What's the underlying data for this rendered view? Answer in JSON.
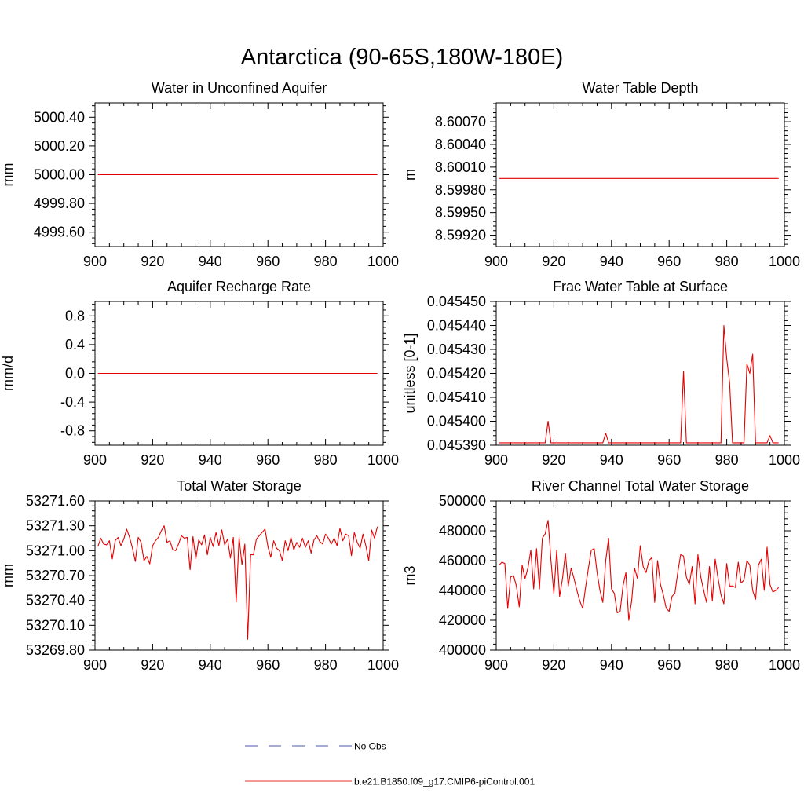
{
  "figure_title": "Antarctica (90-65S,180W-180E)",
  "legend": {
    "entries": [
      {
        "label": "No Obs",
        "color": "#4a5aa8",
        "dash": true
      },
      {
        "label": "b.e21.B1850.f09_g17.CMIP6-piControl.001",
        "color": "#e8302a",
        "dash": false
      }
    ]
  },
  "colors": {
    "series": "#e60000",
    "axis": "#000000"
  },
  "chart_data": [
    {
      "type": "line",
      "title": "Water in Unconfined Aquifer",
      "ylabel": "mm",
      "xlabel": "",
      "xlim": [
        900,
        1000
      ],
      "ylim": [
        4999.5,
        5000.5
      ],
      "xticks": [
        900,
        920,
        940,
        960,
        980,
        1000
      ],
      "yticks": [
        4999.6,
        4999.8,
        5000.0,
        5000.2,
        5000.4
      ],
      "ydec": 2,
      "x": [
        901,
        998
      ],
      "y": [
        5000.0,
        5000.0
      ]
    },
    {
      "type": "line",
      "title": "Water Table Depth",
      "ylabel": "m",
      "xlabel": "",
      "xlim": [
        900,
        1000
      ],
      "ylim": [
        8.59905,
        8.60095
      ],
      "xticks": [
        900,
        920,
        940,
        960,
        980,
        1000
      ],
      "yticks": [
        8.5992,
        8.5995,
        8.5998,
        8.6001,
        8.6004,
        8.6007
      ],
      "ydec": 5,
      "x": [
        901,
        998
      ],
      "y": [
        8.59995,
        8.59995
      ]
    },
    {
      "type": "line",
      "title": "Aquifer Recharge Rate",
      "ylabel": "mm/d",
      "xlabel": "",
      "xlim": [
        900,
        1000
      ],
      "ylim": [
        -1.0,
        1.0
      ],
      "xticks": [
        900,
        920,
        940,
        960,
        980,
        1000
      ],
      "yticks": [
        -0.8,
        -0.4,
        0.0,
        0.4,
        0.8
      ],
      "ydec": 1,
      "x": [
        901,
        998
      ],
      "y": [
        0.0,
        0.0
      ]
    },
    {
      "type": "line",
      "title": "Frac Water Table at Surface",
      "ylabel": "unitless [0-1]",
      "xlabel": "",
      "xlim": [
        900,
        1000
      ],
      "ylim": [
        0.04539,
        0.04545
      ],
      "xticks": [
        900,
        920,
        940,
        960,
        980,
        1000
      ],
      "yticks": [
        0.04539,
        0.0454,
        0.04541,
        0.04542,
        0.04543,
        0.04544,
        0.04545
      ],
      "ydec": 6,
      "x": [
        901,
        917,
        918,
        919,
        937,
        938,
        939,
        964,
        965,
        966,
        978,
        979,
        980,
        981,
        982,
        986,
        987,
        988,
        989,
        990,
        994,
        995,
        996,
        998
      ],
      "y": [
        0.045391,
        0.045391,
        0.0454,
        0.045391,
        0.045391,
        0.045395,
        0.045391,
        0.045391,
        0.045421,
        0.045391,
        0.045391,
        0.04544,
        0.045426,
        0.045416,
        0.045391,
        0.045391,
        0.045424,
        0.04542,
        0.045428,
        0.045391,
        0.045391,
        0.045394,
        0.045391,
        0.045391
      ]
    },
    {
      "type": "line",
      "title": "Total Water Storage",
      "ylabel": "mm",
      "xlabel": "",
      "xlim": [
        900,
        1000
      ],
      "ylim": [
        53269.8,
        53271.6
      ],
      "xticks": [
        900,
        920,
        940,
        960,
        980,
        1000
      ],
      "yticks": [
        53269.8,
        53270.1,
        53270.4,
        53270.7,
        53271.0,
        53271.3,
        53271.6
      ],
      "ydec": 2,
      "x": [
        901,
        902,
        903,
        904,
        905,
        906,
        907,
        908,
        909,
        910,
        911,
        912,
        913,
        914,
        915,
        916,
        917,
        918,
        919,
        920,
        921,
        922,
        923,
        924,
        925,
        926,
        927,
        928,
        929,
        930,
        931,
        932,
        933,
        934,
        935,
        936,
        937,
        938,
        939,
        940,
        941,
        942,
        943,
        944,
        945,
        946,
        947,
        948,
        949,
        950,
        951,
        952,
        953,
        954,
        955,
        956,
        957,
        958,
        959,
        960,
        961,
        962,
        963,
        964,
        965,
        966,
        967,
        968,
        969,
        970,
        971,
        972,
        973,
        974,
        975,
        976,
        977,
        978,
        979,
        980,
        981,
        982,
        983,
        984,
        985,
        986,
        987,
        988,
        989,
        990,
        991,
        992,
        993,
        994,
        995,
        996,
        997,
        998
      ],
      "y": [
        53271.05,
        53271.15,
        53271.08,
        53271.07,
        53271.12,
        53270.9,
        53271.12,
        53271.16,
        53271.06,
        53271.14,
        53271.26,
        53271.16,
        53271.03,
        53270.87,
        53271.16,
        53271.1,
        53270.88,
        53270.93,
        53270.84,
        53271.06,
        53271.12,
        53271.16,
        53271.24,
        53271.3,
        53271.1,
        53271.12,
        53271.01,
        53271.0,
        53271.08,
        53271.18,
        53271.15,
        53271.16,
        53270.77,
        53271.17,
        53270.9,
        53271.13,
        53271.07,
        53271.19,
        53270.95,
        53271.16,
        53271.05,
        53271.22,
        53271.06,
        53271.25,
        53271.07,
        53271.14,
        53270.91,
        53271.16,
        53270.38,
        53271.16,
        53270.83,
        53271.08,
        53269.93,
        53270.95,
        53270.95,
        53271.14,
        53271.18,
        53271.22,
        53271.26,
        53271.05,
        53270.92,
        53271.12,
        53271.03,
        53271.0,
        53270.88,
        53271.12,
        53271.0,
        53271.16,
        53271.01,
        53271.1,
        53271.04,
        53271.15,
        53271.04,
        53271.12,
        53270.97,
        53271.13,
        53271.18,
        53271.11,
        53271.08,
        53271.2,
        53271.15,
        53271.08,
        53271.15,
        53271.06,
        53271.27,
        53271.12,
        53271.2,
        53271.18,
        53270.94,
        53271.22,
        53271.1,
        53271.03,
        53271.2,
        53271.06,
        53270.88,
        53271.25,
        53271.15,
        53271.29
      ]
    },
    {
      "type": "line",
      "title": "River Channel Total Water Storage",
      "ylabel": "m3",
      "xlabel": "",
      "xlim": [
        900,
        1000
      ],
      "ylim": [
        400000,
        500000
      ],
      "xticks": [
        900,
        920,
        940,
        960,
        980,
        1000
      ],
      "yticks": [
        400000,
        420000,
        440000,
        460000,
        480000,
        500000
      ],
      "ydec": 0,
      "x": [
        901,
        902,
        903,
        904,
        905,
        906,
        907,
        908,
        909,
        910,
        911,
        912,
        913,
        914,
        915,
        916,
        917,
        918,
        919,
        920,
        921,
        922,
        923,
        924,
        925,
        926,
        927,
        928,
        929,
        930,
        931,
        932,
        933,
        934,
        935,
        936,
        937,
        938,
        939,
        940,
        941,
        942,
        943,
        944,
        945,
        946,
        947,
        948,
        949,
        950,
        951,
        952,
        953,
        954,
        955,
        956,
        957,
        958,
        959,
        960,
        961,
        962,
        963,
        964,
        965,
        966,
        967,
        968,
        969,
        970,
        971,
        972,
        973,
        974,
        975,
        976,
        977,
        978,
        979,
        980,
        981,
        982,
        983,
        984,
        985,
        986,
        987,
        988,
        989,
        990,
        991,
        992,
        993,
        994,
        995,
        996,
        997,
        998
      ],
      "y": [
        457000,
        459000,
        458000,
        428000,
        449000,
        450000,
        443000,
        429000,
        457000,
        448000,
        455000,
        467000,
        441000,
        468000,
        441000,
        475000,
        478000,
        487000,
        460000,
        438000,
        467000,
        436000,
        448000,
        465000,
        443000,
        455000,
        448000,
        440000,
        433000,
        428000,
        442000,
        455000,
        467000,
        468000,
        452000,
        440000,
        432000,
        460000,
        475000,
        441000,
        438000,
        425000,
        426000,
        443000,
        452000,
        420000,
        433000,
        455000,
        448000,
        470000,
        456000,
        452000,
        460000,
        462000,
        432000,
        460000,
        444000,
        437000,
        428000,
        426000,
        436000,
        438000,
        452000,
        464000,
        463000,
        449000,
        444000,
        456000,
        431000,
        464000,
        449000,
        440000,
        432000,
        456000,
        433000,
        461000,
        448000,
        437000,
        431000,
        458000,
        443000,
        443000,
        442000,
        459000,
        445000,
        447000,
        460000,
        457000,
        440000,
        434000,
        457000,
        461000,
        440000,
        469000,
        444000,
        439000,
        440000,
        442000
      ]
    }
  ]
}
